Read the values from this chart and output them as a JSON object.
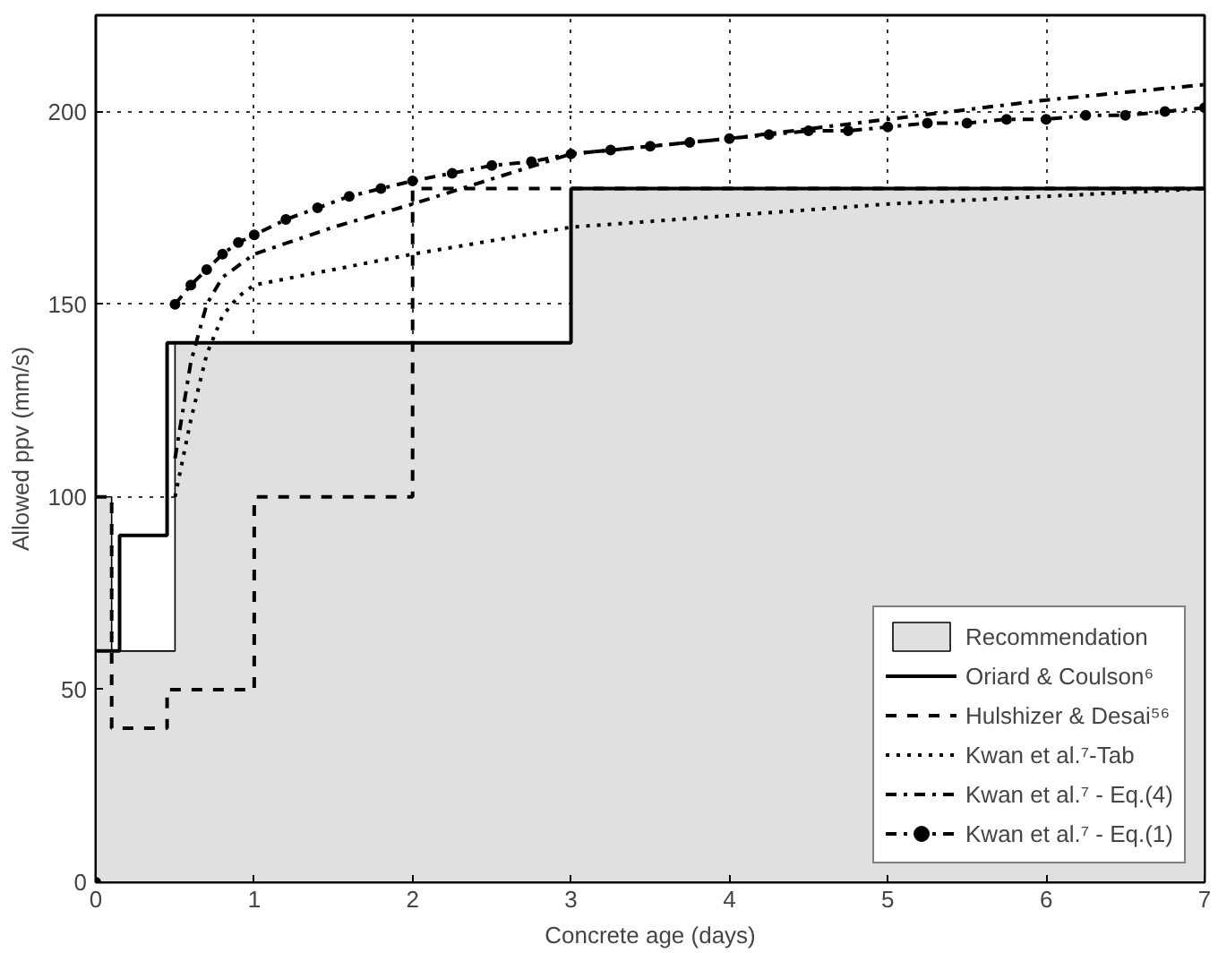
{
  "chart_data": {
    "type": "line",
    "xlabel": "Concrete age (days)",
    "ylabel": "Allowed ppv (mm/s)",
    "xlim": [
      0,
      7
    ],
    "xticks": [
      0,
      1,
      2,
      3,
      4,
      5,
      6,
      7
    ],
    "ylim": [
      0,
      225
    ],
    "yticks": [
      0,
      50,
      100,
      150,
      200
    ],
    "grid": true,
    "legend": "bottom right",
    "series": [
      {
        "name": "Recommendation",
        "type": "area",
        "color": "#dfe0e2",
        "x": [
          0,
          0.1,
          0.1,
          0.5,
          0.5,
          3,
          3,
          7
        ],
        "values": [
          100,
          100,
          60,
          60,
          140,
          140,
          180,
          180
        ]
      },
      {
        "name": "Oriard & Coulson⁶",
        "type": "step",
        "color": "#000000",
        "line_style": "solid",
        "x": [
          0,
          0.15,
          0.45,
          3,
          7
        ],
        "values": [
          60,
          90,
          140,
          180,
          180
        ]
      },
      {
        "name": "Hulshizer & Desai⁵⁶",
        "type": "step",
        "color": "#000000",
        "line_style": "dashed",
        "x": [
          0,
          0.1,
          0.45,
          1,
          2,
          7
        ],
        "values": [
          100,
          40,
          50,
          100,
          180,
          180
        ]
      },
      {
        "name": "Kwan et al.⁷-Tab",
        "color": "#000000",
        "line_style": "dotted",
        "x": [
          0.5,
          0.6,
          0.7,
          0.8,
          0.9,
          1,
          1.5,
          2,
          3,
          4,
          5,
          6,
          7
        ],
        "values": [
          100,
          120,
          137,
          147,
          152,
          155,
          159,
          163,
          170,
          173,
          176,
          178,
          180
        ]
      },
      {
        "name": "Kwan et al.⁷ - Eq.(4)",
        "color": "#000000",
        "line_style": "dashdot",
        "x": [
          0.5,
          0.6,
          0.7,
          0.8,
          1,
          1.5,
          2,
          3,
          4,
          5,
          6,
          7
        ],
        "values": [
          110,
          135,
          150,
          157,
          163,
          170,
          176,
          189,
          193,
          198,
          203,
          207
        ]
      },
      {
        "name": "Kwan et al.⁷ - Eq.(1)",
        "color": "#000000",
        "line_style": "dashdot",
        "marker": "circle",
        "x": [
          0,
          0.25,
          0.5,
          0.6,
          0.7,
          0.8,
          0.9,
          1.0,
          1.2,
          1.4,
          1.6,
          1.8,
          2.0,
          2.25,
          2.5,
          2.75,
          3,
          3.25,
          3.5,
          3.75,
          4,
          4.25,
          4.5,
          4.75,
          5,
          5.25,
          5.5,
          5.75,
          6,
          6.25,
          6.5,
          6.75,
          7
        ],
        "values": [
          0,
          null,
          150,
          155,
          159,
          163,
          166,
          168,
          172,
          175,
          178,
          180,
          182,
          184,
          186,
          187,
          189,
          190,
          191,
          192,
          193,
          194,
          195,
          195,
          196,
          197,
          197,
          198,
          198,
          199,
          199,
          200,
          201
        ]
      }
    ]
  }
}
